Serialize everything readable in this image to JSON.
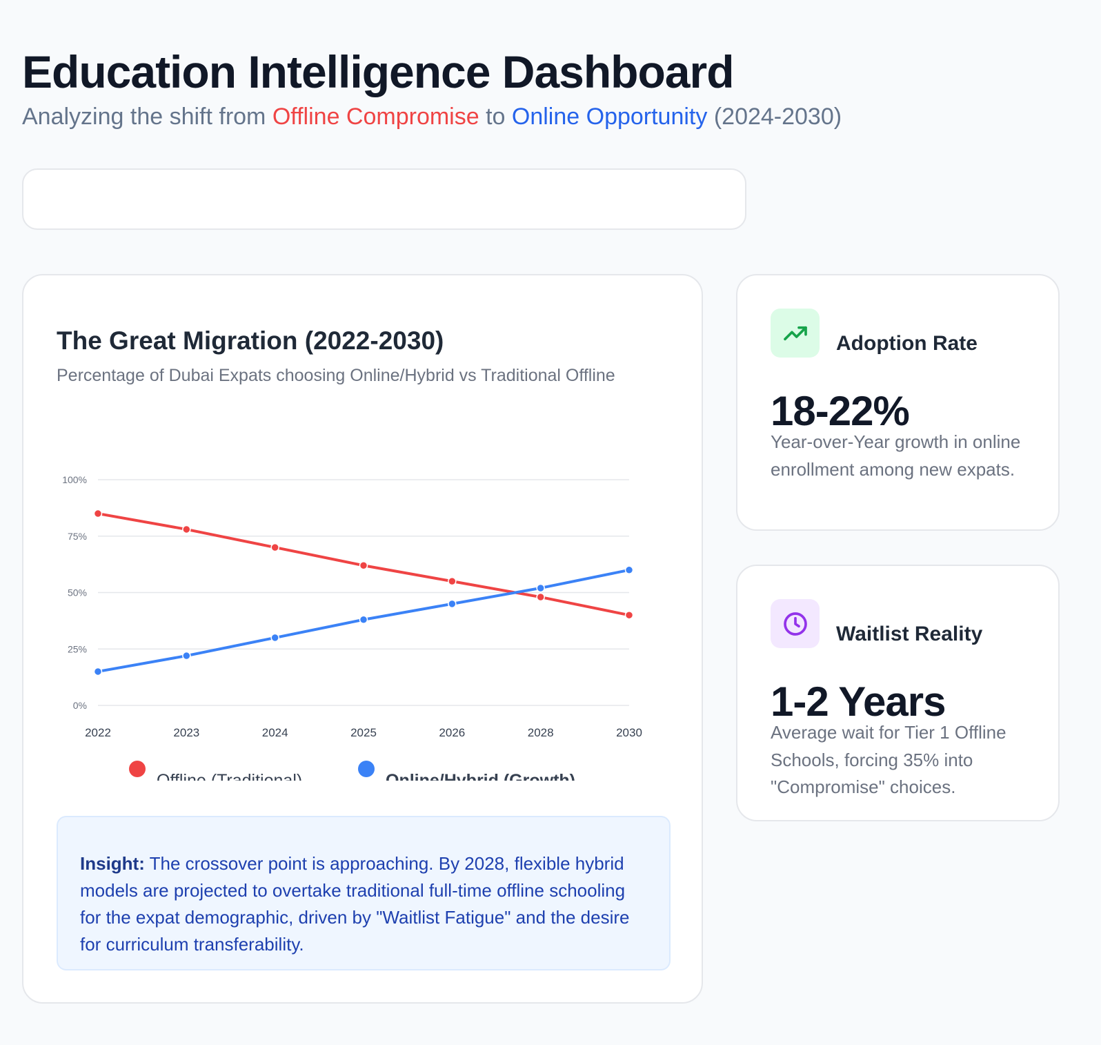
{
  "header": {
    "title": "Education Intelligence Dashboard",
    "subtitle_pre": "Analyzing the shift from ",
    "subtitle_red": "Offline Compromise",
    "subtitle_mid": " to ",
    "subtitle_blue": "Online Opportunity",
    "subtitle_post": " (2024-2030)"
  },
  "colors": {
    "offline": "#ef4444",
    "online": "#3b82f6",
    "accent_green": "#16a34a",
    "accent_purple": "#9333ea"
  },
  "chart_card": {
    "title": "The Great Migration (2022-2030)",
    "subtitle": "Percentage of Dubai Expats choosing Online/Hybrid vs Traditional Offline"
  },
  "chart_data": {
    "type": "line",
    "categories": [
      "2022",
      "2023",
      "2024",
      "2025",
      "2026",
      "2028",
      "2030"
    ],
    "series": [
      {
        "name": "Offline (Traditional)",
        "values": [
          85,
          78,
          70,
          62,
          55,
          48,
          40
        ],
        "color": "#ef4444"
      },
      {
        "name": "Online/Hybrid (Growth)",
        "values": [
          15,
          22,
          30,
          38,
          45,
          52,
          60
        ],
        "color": "#3b82f6"
      }
    ],
    "yticks": [
      "0%",
      "25%",
      "50%",
      "75%",
      "100%"
    ],
    "ylim": [
      0,
      100
    ],
    "grid": true,
    "legend": "bottom"
  },
  "insight": {
    "label": "Insight:",
    "text": " The crossover point is approaching. By 2028, flexible hybrid models are projected to overtake traditional full-time offline schooling for the expat demographic, driven by \"Waitlist Fatigue\" and the desire for curriculum transferability."
  },
  "stats": [
    {
      "icon": "trending-up-icon",
      "title": "Adoption Rate",
      "value": "18-22%",
      "desc": "Year-over-Year growth in online enrollment among new expats."
    },
    {
      "icon": "clock-icon",
      "title": "Waitlist Reality",
      "value": "1-2 Years",
      "desc": "Average wait for Tier 1 Offline Schools, forcing 35% into \"Compromise\" choices."
    }
  ]
}
